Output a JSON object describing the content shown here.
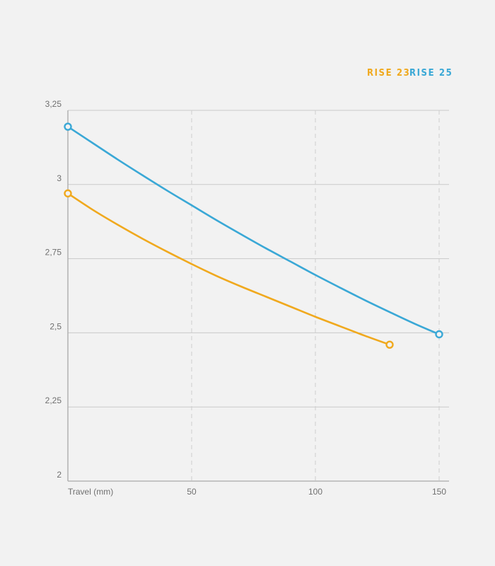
{
  "chart_data": {
    "type": "line",
    "xlabel": "Travel (mm)",
    "ylabel": "",
    "xlim": [
      0,
      150
    ],
    "ylim": [
      2,
      3.25
    ],
    "x_ticks": [
      50,
      100,
      150
    ],
    "x_tick_labels": [
      "50",
      "100",
      "150"
    ],
    "y_ticks": [
      2,
      2.25,
      2.5,
      2.75,
      3,
      3.25
    ],
    "y_tick_labels": [
      "2",
      "2,25",
      "2,5",
      "2,75",
      "3",
      "3,25"
    ],
    "grid": {
      "horizontal": "solid",
      "vertical": "dashed"
    },
    "legend_position": "top-right",
    "series": [
      {
        "name": "RISE 23",
        "color": "#f0a91e",
        "x": [
          0,
          10,
          20,
          30,
          40,
          50,
          60,
          70,
          80,
          90,
          100,
          110,
          120,
          130
        ],
        "y": [
          2.97,
          2.915,
          2.865,
          2.818,
          2.774,
          2.732,
          2.692,
          2.656,
          2.622,
          2.588,
          2.554,
          2.522,
          2.49,
          2.46
        ]
      },
      {
        "name": "RISE 25",
        "color": "#3aa8d6",
        "x": [
          0,
          10,
          20,
          30,
          40,
          50,
          60,
          70,
          80,
          90,
          100,
          110,
          120,
          130,
          140,
          150
        ],
        "y": [
          3.195,
          3.14,
          3.085,
          3.032,
          2.98,
          2.93,
          2.88,
          2.832,
          2.785,
          2.74,
          2.695,
          2.652,
          2.61,
          2.57,
          2.531,
          2.495
        ]
      }
    ]
  }
}
